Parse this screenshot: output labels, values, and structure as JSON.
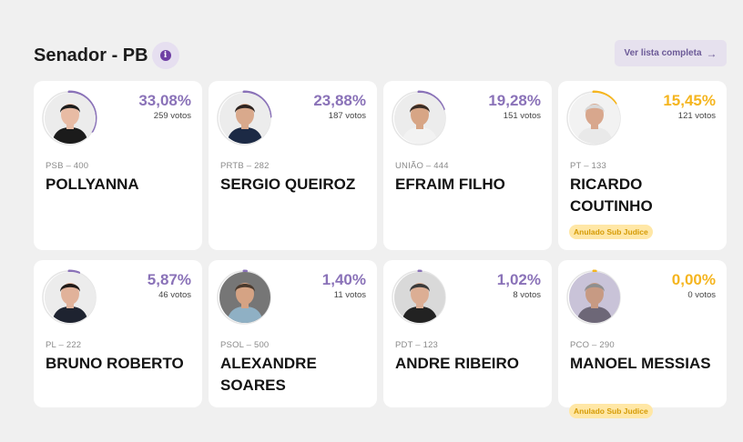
{
  "header": {
    "title": "Senador - PB",
    "info_icon": "info-icon",
    "list_button_label": "Ver lista completa",
    "list_button_arrow": "→"
  },
  "colors": {
    "purple": "#8a72b8",
    "yellow": "#f5b51f",
    "ring_track": "#e5e5e5",
    "badge_bg": "#ffe7a6"
  },
  "candidates": [
    {
      "percent": "33,08%",
      "percent_value": 33.08,
      "votes": "259 votos",
      "party": "PSB – 400",
      "name": "POLLYANNA",
      "badge": "",
      "accent": "purple",
      "avatar": {
        "skin": "#e8bba4",
        "hair": "#1c1c1c",
        "shirt": "#1b1b1b",
        "bg": "#ececec"
      }
    },
    {
      "percent": "23,88%",
      "percent_value": 23.88,
      "votes": "187 votos",
      "party": "PRTB – 282",
      "name": "SERGIO QUEIROZ",
      "badge": "",
      "accent": "purple",
      "avatar": {
        "skin": "#d9a98c",
        "hair": "#2d2320",
        "shirt": "#1c2a45",
        "bg": "#ececec"
      }
    },
    {
      "percent": "19,28%",
      "percent_value": 19.28,
      "votes": "151 votos",
      "party": "UNIÃO – 444",
      "name": "EFRAIM FILHO",
      "badge": "",
      "accent": "purple",
      "avatar": {
        "skin": "#d7a585",
        "hair": "#3a2c24",
        "shirt": "#f2f2f2",
        "bg": "#ececec"
      }
    },
    {
      "percent": "15,45%",
      "percent_value": 15.45,
      "votes": "121 votos",
      "party": "PT – 133",
      "name": "RICARDO COUTINHO",
      "badge": "Anulado Sub Judice",
      "accent": "yellow",
      "avatar": {
        "skin": "#d8a78d",
        "hair": "#d9d9d9",
        "shirt": "#e9e9e9",
        "bg": "#f2f2f2"
      }
    },
    {
      "percent": "5,87%",
      "percent_value": 5.87,
      "votes": "46 votos",
      "party": "PL – 222",
      "name": "BRUNO ROBERTO",
      "badge": "",
      "accent": "purple",
      "avatar": {
        "skin": "#e1b29a",
        "hair": "#1f1a18",
        "shirt": "#1e2330",
        "bg": "#ececec"
      }
    },
    {
      "percent": "1,40%",
      "percent_value": 1.4,
      "votes": "11 votos",
      "party": "PSOL – 500",
      "name": "ALEXANDRE SOARES",
      "badge": "",
      "accent": "purple",
      "avatar": {
        "skin": "#d5a384",
        "hair": "#4a3a2e",
        "shirt": "#8fb0c4",
        "bg": "#767676"
      }
    },
    {
      "percent": "1,02%",
      "percent_value": 1.02,
      "votes": "8 votos",
      "party": "PDT – 123",
      "name": "ANDRE RIBEIRO",
      "badge": "",
      "accent": "purple",
      "avatar": {
        "skin": "#dcae94",
        "hair": "#3a3a3a",
        "shirt": "#222222",
        "bg": "#d9d9d9"
      }
    },
    {
      "percent": "0,00%",
      "percent_value": 0.0,
      "votes": "0 votos",
      "party": "PCO – 290",
      "name": "MANOEL MESSIAS",
      "badge": "Anulado Sub Judice",
      "accent": "yellow",
      "avatar": {
        "skin": "#c79a83",
        "hair": "#8f8f8f",
        "shirt": "#6d6777",
        "bg": "#c9c3d8"
      }
    }
  ]
}
